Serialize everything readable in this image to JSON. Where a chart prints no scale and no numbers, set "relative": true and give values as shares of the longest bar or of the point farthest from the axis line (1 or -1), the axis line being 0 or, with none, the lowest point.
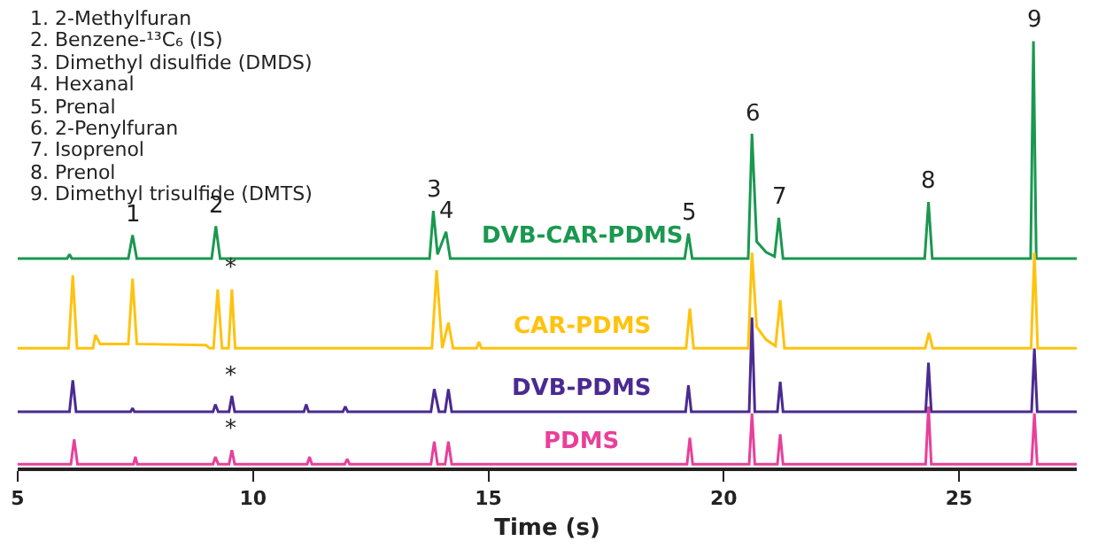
{
  "chart_data": {
    "type": "line",
    "relative": true,
    "xlabel": "Time (s)",
    "xlim": [
      5,
      27.5
    ],
    "xticks": [
      5,
      10,
      15,
      20,
      25
    ],
    "legend": false,
    "marker": "none",
    "line_style": "solid",
    "series": [
      {
        "name": "DVB-CAR-PDMS",
        "color": "#1a9850",
        "x": [
          5.0,
          6.05,
          6.1,
          6.15,
          7.35,
          7.44,
          7.53,
          9.12,
          9.21,
          9.3,
          13.75,
          13.83,
          13.92,
          14.1,
          14.19,
          19.17,
          19.25,
          19.33,
          20.52,
          20.6,
          20.7,
          20.9,
          21.08,
          21.17,
          21.26,
          24.27,
          24.35,
          24.43,
          26.52,
          26.58,
          26.64,
          27.5
        ],
        "values": [
          0.49,
          0.49,
          0.5,
          0.49,
          0.49,
          0.545,
          0.49,
          0.49,
          0.566,
          0.49,
          0.49,
          0.602,
          0.5,
          0.553,
          0.49,
          0.49,
          0.549,
          0.49,
          0.49,
          0.783,
          0.53,
          0.505,
          0.495,
          0.586,
          0.49,
          0.49,
          0.623,
          0.49,
          0.49,
          1.0,
          0.49,
          0.49
        ]
      },
      {
        "name": "CAR-PDMS",
        "color": "#ffc20e",
        "x": [
          5.0,
          6.08,
          6.17,
          6.26,
          6.6,
          6.65,
          6.75,
          7.35,
          7.44,
          7.53,
          9.0,
          9.08,
          9.16,
          9.25,
          9.34,
          9.48,
          9.55,
          9.62,
          13.8,
          13.9,
          14.02,
          14.15,
          14.25,
          14.75,
          14.8,
          14.85,
          19.2,
          19.28,
          19.36,
          20.52,
          20.6,
          20.7,
          20.9,
          21.1,
          21.2,
          21.29,
          24.28,
          24.36,
          24.44,
          26.53,
          26.6,
          26.67,
          27.5
        ],
        "values": [
          0.28,
          0.28,
          0.451,
          0.28,
          0.28,
          0.311,
          0.29,
          0.29,
          0.443,
          0.29,
          0.287,
          0.28,
          0.28,
          0.418,
          0.28,
          0.28,
          0.418,
          0.28,
          0.28,
          0.463,
          0.28,
          0.34,
          0.28,
          0.28,
          0.295,
          0.28,
          0.28,
          0.373,
          0.28,
          0.28,
          0.504,
          0.33,
          0.3,
          0.285,
          0.393,
          0.28,
          0.28,
          0.316,
          0.28,
          0.28,
          0.504,
          0.28,
          0.28
        ]
      },
      {
        "name": "DVB-PDMS",
        "color": "#4b2a91",
        "x": [
          5.0,
          6.1,
          6.17,
          6.24,
          7.4,
          7.44,
          7.48,
          9.15,
          9.2,
          9.26,
          9.49,
          9.55,
          9.61,
          11.08,
          11.13,
          11.18,
          11.91,
          11.96,
          12.01,
          13.78,
          13.85,
          13.95,
          14.08,
          14.15,
          14.22,
          19.19,
          19.25,
          19.31,
          20.54,
          20.6,
          20.66,
          21.14,
          21.2,
          21.26,
          24.29,
          24.35,
          24.41,
          26.54,
          26.6,
          26.66,
          27.5
        ],
        "values": [
          0.131,
          0.131,
          0.205,
          0.131,
          0.131,
          0.139,
          0.131,
          0.131,
          0.148,
          0.131,
          0.131,
          0.168,
          0.131,
          0.131,
          0.148,
          0.131,
          0.131,
          0.143,
          0.131,
          0.131,
          0.184,
          0.131,
          0.131,
          0.184,
          0.131,
          0.131,
          0.193,
          0.131,
          0.131,
          0.352,
          0.131,
          0.131,
          0.201,
          0.131,
          0.131,
          0.246,
          0.131,
          0.131,
          0.279,
          0.131,
          0.131
        ]
      },
      {
        "name": "PDMS",
        "color": "#e8409a",
        "x": [
          5.0,
          6.13,
          6.2,
          6.27,
          7.46,
          7.5,
          7.54,
          9.15,
          9.2,
          9.26,
          9.49,
          9.55,
          9.61,
          11.15,
          11.2,
          11.25,
          11.95,
          12.0,
          12.05,
          13.78,
          13.85,
          13.92,
          14.08,
          14.15,
          14.22,
          19.22,
          19.28,
          19.34,
          20.54,
          20.6,
          20.66,
          21.14,
          21.2,
          21.26,
          24.29,
          24.35,
          24.41,
          26.54,
          26.6,
          26.66,
          27.5
        ],
        "values": [
          0.008,
          0.008,
          0.066,
          0.008,
          0.008,
          0.025,
          0.008,
          0.008,
          0.025,
          0.008,
          0.008,
          0.041,
          0.008,
          0.008,
          0.025,
          0.008,
          0.008,
          0.02,
          0.008,
          0.008,
          0.061,
          0.008,
          0.008,
          0.061,
          0.008,
          0.008,
          0.07,
          0.008,
          0.008,
          0.127,
          0.008,
          0.008,
          0.078,
          0.008,
          0.008,
          0.143,
          0.008,
          0.008,
          0.127,
          0.008,
          0.008
        ]
      }
    ],
    "annotations": [
      "1. 2-Methylfuran",
      "2. Benzene-¹³C₆ (IS)",
      "3. Dimethyl disulfide (DMDS)",
      "4. Hexanal",
      "5. Prenal",
      "6. 2-Penylfuran",
      "7. Isoprenol",
      "8. Prenol",
      "9. Dimethyl trisulfide (DMTS)",
      {
        "text": "1",
        "x": 7.44,
        "y": 0.545
      },
      {
        "text": "2",
        "x": 9.21,
        "y": 0.566
      },
      {
        "text": "3",
        "x": 13.83,
        "y": 0.602
      },
      {
        "text": "4",
        "x": 14.1,
        "y": 0.553
      },
      {
        "text": "5",
        "x": 19.25,
        "y": 0.549
      },
      {
        "text": "6",
        "x": 20.6,
        "y": 0.783
      },
      {
        "text": "7",
        "x": 21.17,
        "y": 0.586
      },
      {
        "text": "8",
        "x": 24.35,
        "y": 0.623
      },
      {
        "text": "9",
        "x": 26.58,
        "y": 1.0
      },
      {
        "text": "*",
        "x": 9.55,
        "y": 0.418
      },
      {
        "text": "*",
        "x": 9.55,
        "y": 0.168
      },
      {
        "text": "*",
        "x": 9.55,
        "y": 0.041
      }
    ]
  }
}
